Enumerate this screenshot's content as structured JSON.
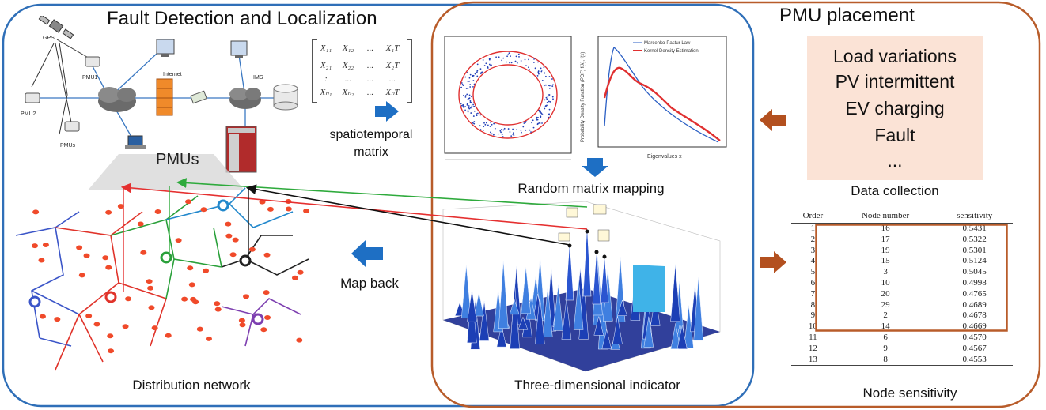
{
  "titles": {
    "fault_detection": "Fault Detection and Localization",
    "pmu_placement": "PMU placement"
  },
  "network_labels": {
    "gps": "GPS",
    "pmu1": "PMU1",
    "pmu2": "PMU2",
    "pmus_small": "PMUs",
    "internet": "Internet",
    "ims": "IMS",
    "pmus": "PMUs"
  },
  "labels": {
    "spatiotemporal_line1": "spatiotemporal",
    "spatiotemporal_line2": "matrix",
    "random_matrix_mapping": "Random matrix mapping",
    "map_back": "Map back",
    "distribution_network": "Distribution network",
    "three_dimensional_indicator": "Three-dimensional indicator",
    "data_collection": "Data collection",
    "node_sensitivity": "Node sensitivity"
  },
  "matrix": {
    "rows": [
      [
        "X₁₁",
        "X₁₂",
        "...",
        "X₁T"
      ],
      [
        "X₂₁",
        "X₂₂",
        "...",
        "X₂T"
      ],
      [
        ":",
        "...",
        "...",
        "..."
      ],
      [
        "Xₙ₁",
        "Xₙ₂",
        "...",
        "XₙT"
      ]
    ]
  },
  "data_sources": [
    "Load variations",
    "PV intermittent",
    "EV charging",
    "Fault",
    "..."
  ],
  "pdf_plot": {
    "ylabel": "Probability Density Function (PDF) f(λ), f(x)",
    "xlabel": "Eigenvalues x",
    "legend": [
      "Marcenko-Pastur Law",
      "Kernel Density Estimation"
    ]
  },
  "sensitivity_table": {
    "headers": [
      "Order",
      "Node number",
      "sensitivity"
    ],
    "rows": [
      [
        "1",
        "16",
        "0.5431"
      ],
      [
        "2",
        "17",
        "0.5322"
      ],
      [
        "3",
        "19",
        "0.5301"
      ],
      [
        "4",
        "15",
        "0.5124"
      ],
      [
        "5",
        "3",
        "0.5045"
      ],
      [
        "6",
        "10",
        "0.4998"
      ],
      [
        "7",
        "20",
        "0.4765"
      ],
      [
        "8",
        "29",
        "0.4689"
      ],
      [
        "9",
        "2",
        "0.4678"
      ],
      [
        "10",
        "14",
        "0.4669"
      ],
      [
        "11",
        "6",
        "0.4570"
      ],
      [
        "12",
        "9",
        "0.4567"
      ],
      [
        "13",
        "8",
        "0.4553"
      ]
    ]
  },
  "colors": {
    "blue_border": "#2f6fb8",
    "orange_border": "#b85c2a",
    "arrow_blue": "#1e6fc4",
    "arrow_orange": "#b3501f",
    "highlight_fill": "#fbe3d6",
    "red_line": "#e53030",
    "green_line": "#2eaa3c",
    "black_line": "#111111"
  }
}
